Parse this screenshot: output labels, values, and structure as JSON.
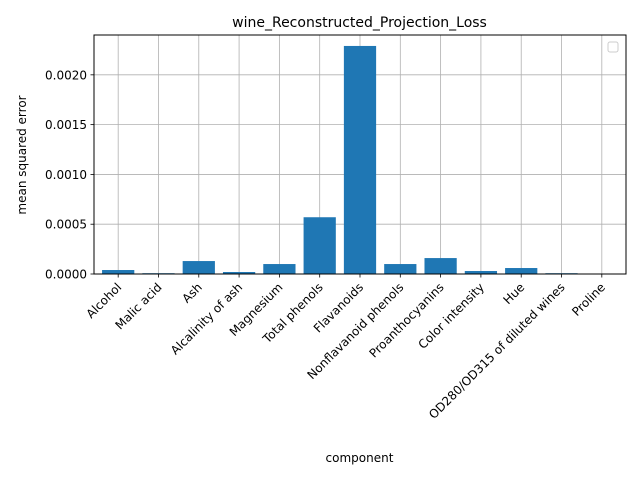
{
  "chart_data": {
    "type": "bar",
    "title": "wine_Reconstructed_Projection_Loss",
    "xlabel": "component",
    "ylabel": "mean squared error",
    "categories": [
      "Alcohol",
      "Malic acid",
      "Ash",
      "Alcalinity of ash",
      "Magnesium",
      "Total phenols",
      "Flavanoids",
      "Nonflavanoid phenols",
      "Proanthocyanins",
      "Color intensity",
      "Hue",
      "OD280/OD315 of diluted wines",
      "Proline"
    ],
    "values": [
      4e-05,
      8e-06,
      0.00013,
      2e-05,
      0.0001,
      0.00057,
      0.00229,
      0.0001,
      0.00016,
      3e-05,
      6e-05,
      8e-06,
      0.0
    ],
    "ylim": [
      0,
      0.0024
    ],
    "yticks": [
      0.0,
      0.0005,
      0.001,
      0.0015,
      0.002
    ],
    "ytick_labels": [
      "0.0000",
      "0.0005",
      "0.0010",
      "0.0015",
      "0.0020"
    ],
    "grid": true,
    "legend": "top-right, empty",
    "colors": {
      "bar": "#1f77b4",
      "grid": "#b0b0b0",
      "axis": "#000000"
    }
  }
}
